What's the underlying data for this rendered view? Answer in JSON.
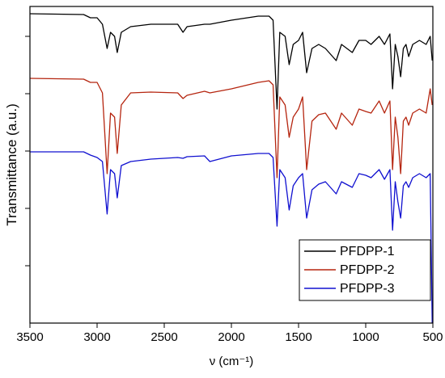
{
  "chart_data": {
    "type": "line",
    "x_label": "ν (cm⁻¹)",
    "y_label": "Transmittance (a.u.)",
    "x": [
      3500,
      3100,
      3050,
      3000,
      2960,
      2925,
      2900,
      2870,
      2850,
      2820,
      2750,
      2600,
      2400,
      2360,
      2330,
      2200,
      2160,
      2000,
      1800,
      1720,
      1690,
      1660,
      1640,
      1600,
      1570,
      1540,
      1500,
      1470,
      1440,
      1400,
      1350,
      1300,
      1220,
      1180,
      1100,
      1050,
      1000,
      960,
      900,
      860,
      820,
      800,
      780,
      760,
      740,
      720,
      700,
      680,
      650,
      600,
      550,
      520,
      505
    ],
    "series": [
      {
        "name": "PFDPP-1",
        "color": "#000000",
        "values": [
          383,
          382,
          378,
          378,
          370,
          340,
          360,
          355,
          335,
          360,
          367,
          370,
          370,
          360,
          367,
          370,
          370,
          375,
          380,
          380,
          375,
          265,
          360,
          355,
          320,
          345,
          350,
          360,
          310,
          340,
          345,
          340,
          325,
          345,
          335,
          350,
          350,
          345,
          355,
          345,
          358,
          290,
          345,
          330,
          305,
          340,
          345,
          330,
          345,
          350,
          345,
          355,
          325
        ]
      },
      {
        "name": "PFDPP-2",
        "color": "#b5250f",
        "values": [
          303,
          302,
          298,
          298,
          285,
          185,
          260,
          255,
          210,
          270,
          285,
          286,
          285,
          278,
          282,
          287,
          285,
          290,
          298,
          300,
          295,
          180,
          280,
          270,
          230,
          255,
          265,
          280,
          190,
          250,
          258,
          260,
          240,
          260,
          245,
          265,
          262,
          260,
          275,
          260,
          275,
          190,
          255,
          230,
          185,
          250,
          255,
          245,
          260,
          265,
          260,
          290,
          270
        ]
      },
      {
        "name": "PFDPP-3",
        "color": "#1010d0",
        "values": [
          212,
          212,
          208,
          205,
          200,
          135,
          190,
          185,
          155,
          195,
          200,
          203,
          205,
          204,
          206,
          207,
          200,
          207,
          210,
          210,
          205,
          120,
          190,
          180,
          140,
          170,
          180,
          185,
          130,
          165,
          172,
          175,
          160,
          175,
          168,
          185,
          183,
          180,
          190,
          178,
          190,
          115,
          175,
          150,
          130,
          170,
          175,
          168,
          180,
          185,
          180,
          185,
          0
        ]
      }
    ],
    "xlim": [
      3500,
      500
    ],
    "xticks": [
      3500,
      3000,
      2500,
      2000,
      1500,
      1000,
      500
    ],
    "ylim": [
      0,
      392
    ],
    "yticks": [
      71,
      142,
      213,
      284,
      355
    ],
    "legend": "lower right"
  }
}
